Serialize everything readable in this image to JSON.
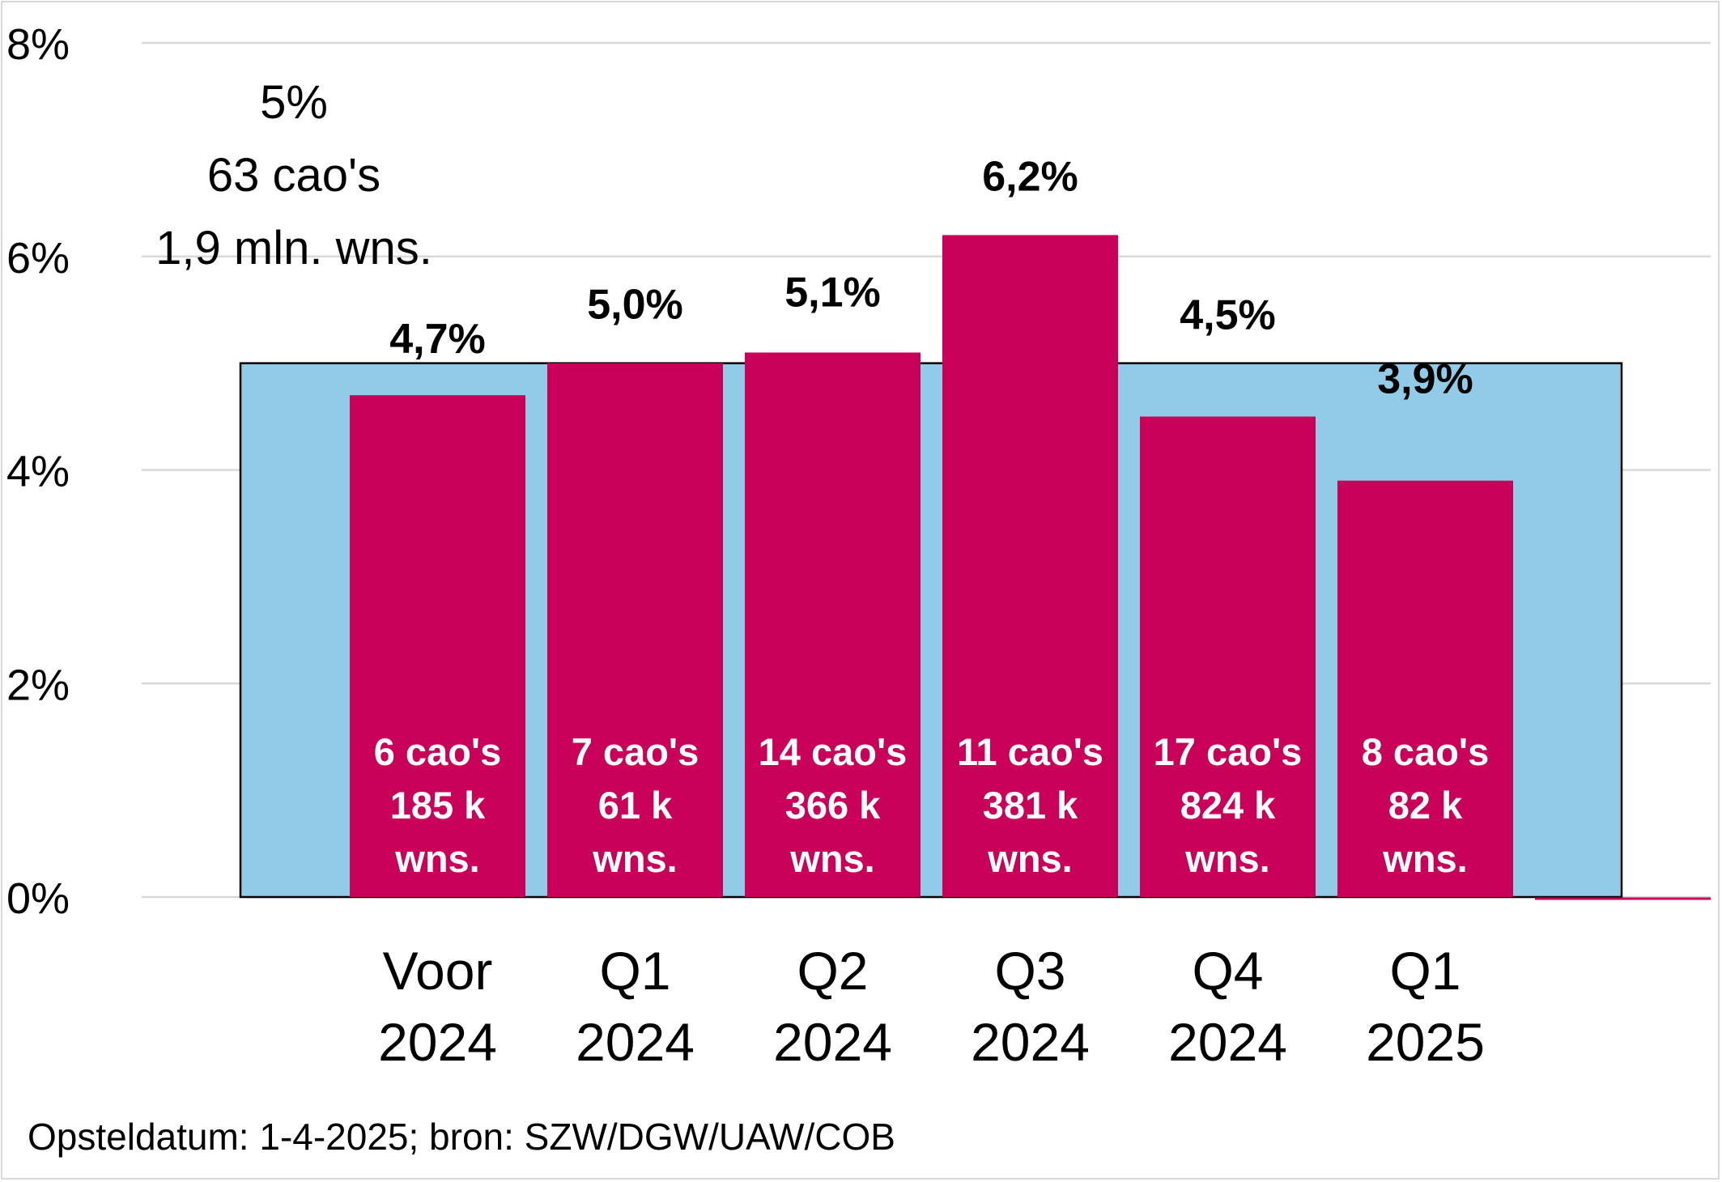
{
  "chart_data": {
    "type": "bar",
    "categories": [
      [
        "Voor",
        "2024"
      ],
      [
        "Q1",
        "2024"
      ],
      [
        "Q2",
        "2024"
      ],
      [
        "Q3",
        "2024"
      ],
      [
        "Q4",
        "2024"
      ],
      [
        "Q1",
        "2025"
      ]
    ],
    "values": [
      4.7,
      5.0,
      5.1,
      6.2,
      4.5,
      3.9
    ],
    "value_labels": [
      "4,7%",
      "5,0%",
      "5,1%",
      "6,2%",
      "4,5%",
      "3,9%"
    ],
    "bar_annotations": [
      [
        "6 cao's",
        "185 k",
        "wns."
      ],
      [
        "7 cao's",
        "61 k",
        "wns."
      ],
      [
        "14 cao's",
        "366 k",
        "wns."
      ],
      [
        "11 cao's",
        "381 k",
        "wns."
      ],
      [
        "17 cao's",
        "824 k",
        "wns."
      ],
      [
        "8 cao's",
        "82 k",
        "wns."
      ]
    ],
    "overall": {
      "value": 5,
      "labels": [
        "5%",
        "63 cao's",
        "1,9 mln. wns."
      ]
    },
    "ylim": [
      0,
      8
    ],
    "yticks": [
      0,
      2,
      4,
      6,
      8
    ],
    "ytick_labels": [
      "0%",
      "2%",
      "4%",
      "6%",
      "8%"
    ],
    "grid": true,
    "colors": {
      "bar": "#c8005a",
      "overall_area": "#91cbe7",
      "grid": "#d9d9d9",
      "inner_text": "#ffffff"
    }
  },
  "footer": {
    "source": "Opsteldatum: 1-4-2025; bron: SZW/DGW/UAW/COB"
  }
}
